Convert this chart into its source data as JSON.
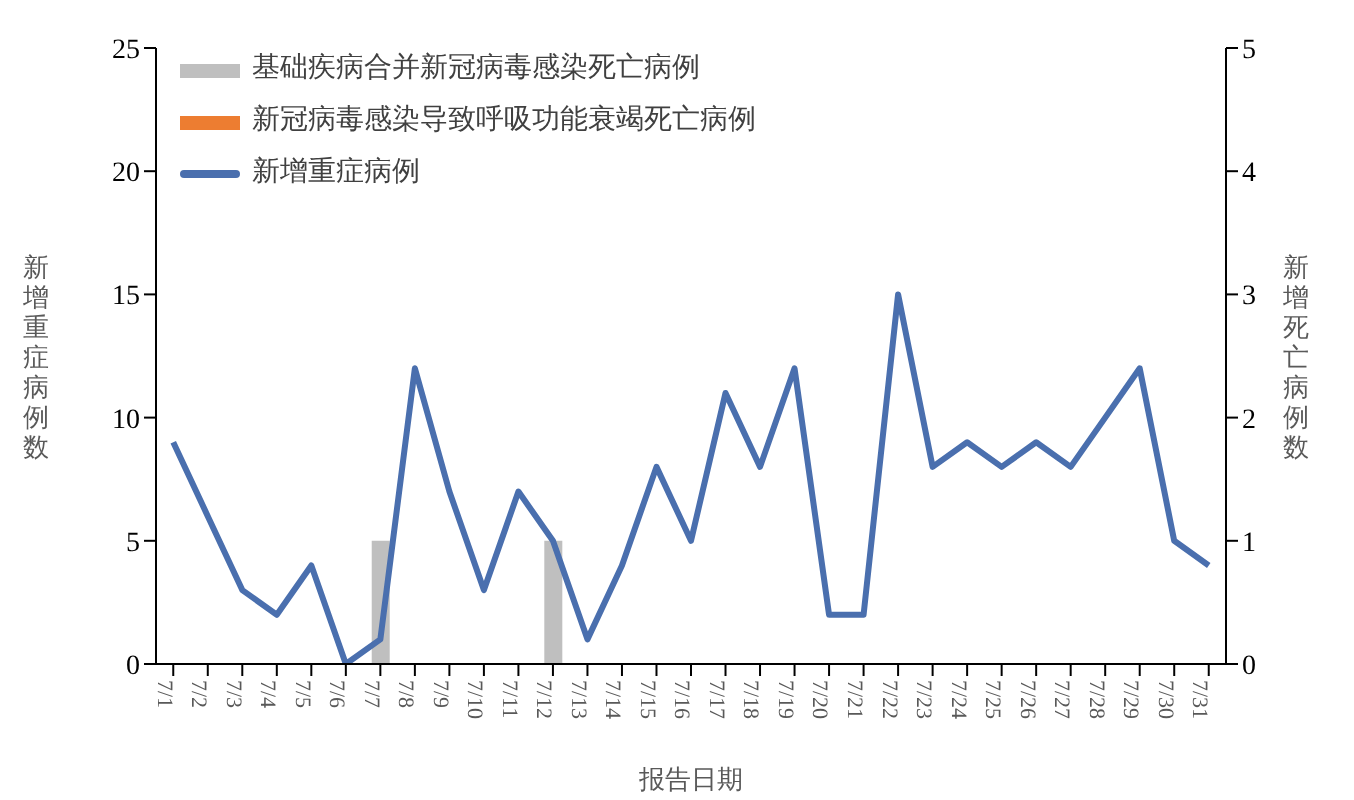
{
  "chart_data": {
    "type": "bar",
    "categories": [
      "7/1",
      "7/2",
      "7/3",
      "7/4",
      "7/5",
      "7/6",
      "7/7",
      "7/8",
      "7/9",
      "7/10",
      "7/11",
      "7/12",
      "7/13",
      "7/14",
      "7/15",
      "7/16",
      "7/17",
      "7/18",
      "7/19",
      "7/20",
      "7/21",
      "7/22",
      "7/23",
      "7/24",
      "7/25",
      "7/26",
      "7/27",
      "7/28",
      "7/29",
      "7/30",
      "7/31"
    ],
    "xlabel": "报告日期",
    "ylabel": "新增重症病例数",
    "y2label": "新增死亡病例数",
    "series": [
      {
        "name": "基础疾病合并新冠病毒感染死亡病例",
        "axis": "y2",
        "color": "#bfbfbf",
        "values": [
          0,
          0,
          0,
          0,
          0,
          0,
          1,
          0,
          0,
          0,
          0,
          1,
          0,
          0,
          0,
          0,
          0,
          0,
          0,
          0,
          0,
          0,
          0,
          0,
          0,
          0,
          0,
          0,
          0,
          0,
          0
        ]
      },
      {
        "name": "新冠病毒感染导致呼吸功能衰竭死亡病例",
        "axis": "y2",
        "color": "#ed7d31",
        "values": [
          0,
          0,
          0,
          0,
          0,
          0,
          0,
          0,
          0,
          0,
          0,
          0,
          0,
          0,
          0,
          0,
          0,
          0,
          0,
          0,
          0,
          0,
          0,
          0,
          0,
          0,
          0,
          0,
          0,
          0,
          0
        ]
      },
      {
        "name": "新增重症病例",
        "type": "line",
        "color": "#4a6fae",
        "values": [
          9,
          6,
          3,
          2,
          4,
          0,
          1,
          12,
          7,
          3,
          7,
          5,
          1,
          4,
          8,
          5,
          11,
          8,
          12,
          2,
          2,
          15,
          8,
          9,
          8,
          9,
          8,
          10,
          12,
          5,
          4
        ]
      }
    ],
    "stacked": true,
    "ylim": [
      0,
      25
    ],
    "yticks": [
      0,
      5,
      10,
      15,
      20,
      25
    ],
    "y2lim": [
      0,
      5
    ],
    "y2ticks": [
      0,
      1,
      2,
      3,
      4,
      5
    ],
    "grid": false,
    "legend": "top left",
    "marker": "none",
    "line_style": "solid"
  }
}
